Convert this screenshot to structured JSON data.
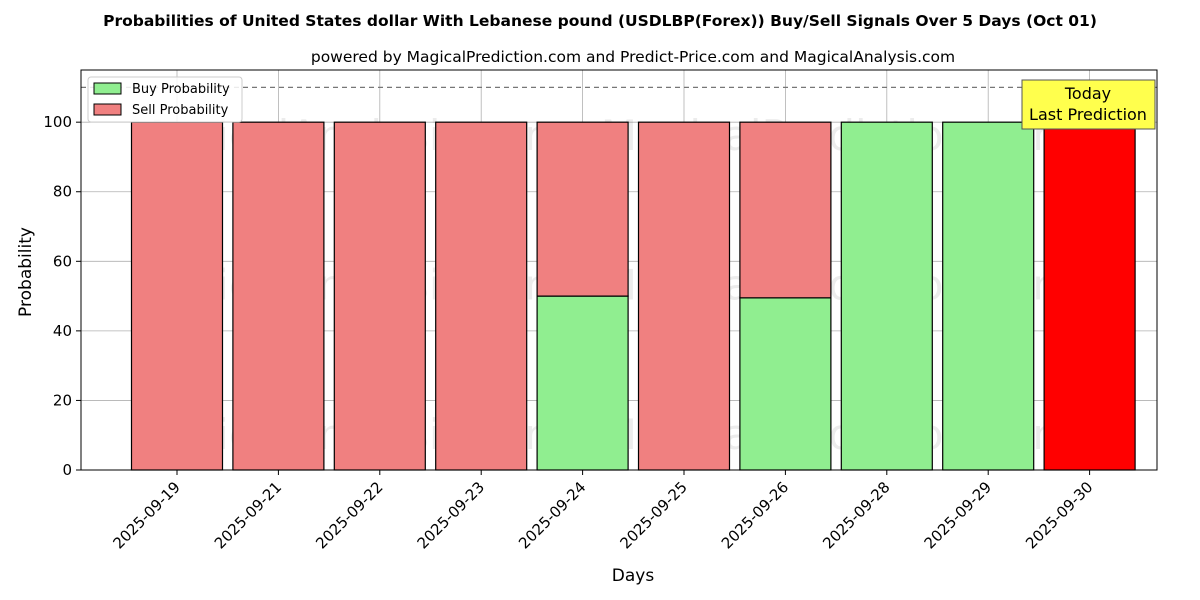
{
  "chart_data": {
    "type": "bar",
    "stacked": true,
    "title": "Probabilities of United States dollar With Lebanese pound (USDLBP(Forex)) Buy/Sell Signals Over 5 Days (Oct 01)",
    "subtitle": "powered by MagicalPrediction.com and Predict-Price.com and MagicalAnalysis.com",
    "xlabel": "Days",
    "ylabel": "Probability",
    "ylim": [
      0,
      115
    ],
    "yticks": [
      0,
      20,
      40,
      60,
      80,
      100
    ],
    "reference_line": 110,
    "grid": true,
    "legend_position": "top-left",
    "categories": [
      "2025-09-19",
      "2025-09-21",
      "2025-09-22",
      "2025-09-23",
      "2025-09-24",
      "2025-09-25",
      "2025-09-26",
      "2025-09-28",
      "2025-09-29",
      "2025-09-30"
    ],
    "series": [
      {
        "name": "Buy Probability",
        "color": "#90ee90",
        "values": [
          0,
          0,
          0,
          0,
          50,
          0,
          49.5,
          100,
          100,
          0
        ]
      },
      {
        "name": "Sell Probability",
        "color": "#f08080",
        "values": [
          100,
          100,
          100,
          100,
          50,
          100,
          50.5,
          0,
          0,
          100
        ]
      }
    ],
    "highlight": {
      "index": 9,
      "color": "#ff0000"
    },
    "annotation": {
      "line1": "Today",
      "line2": "Last Prediction",
      "color": "#ffff4d"
    },
    "watermarks": [
      "MagicalAnalysis.com",
      "MagicalPrediction.com"
    ]
  }
}
